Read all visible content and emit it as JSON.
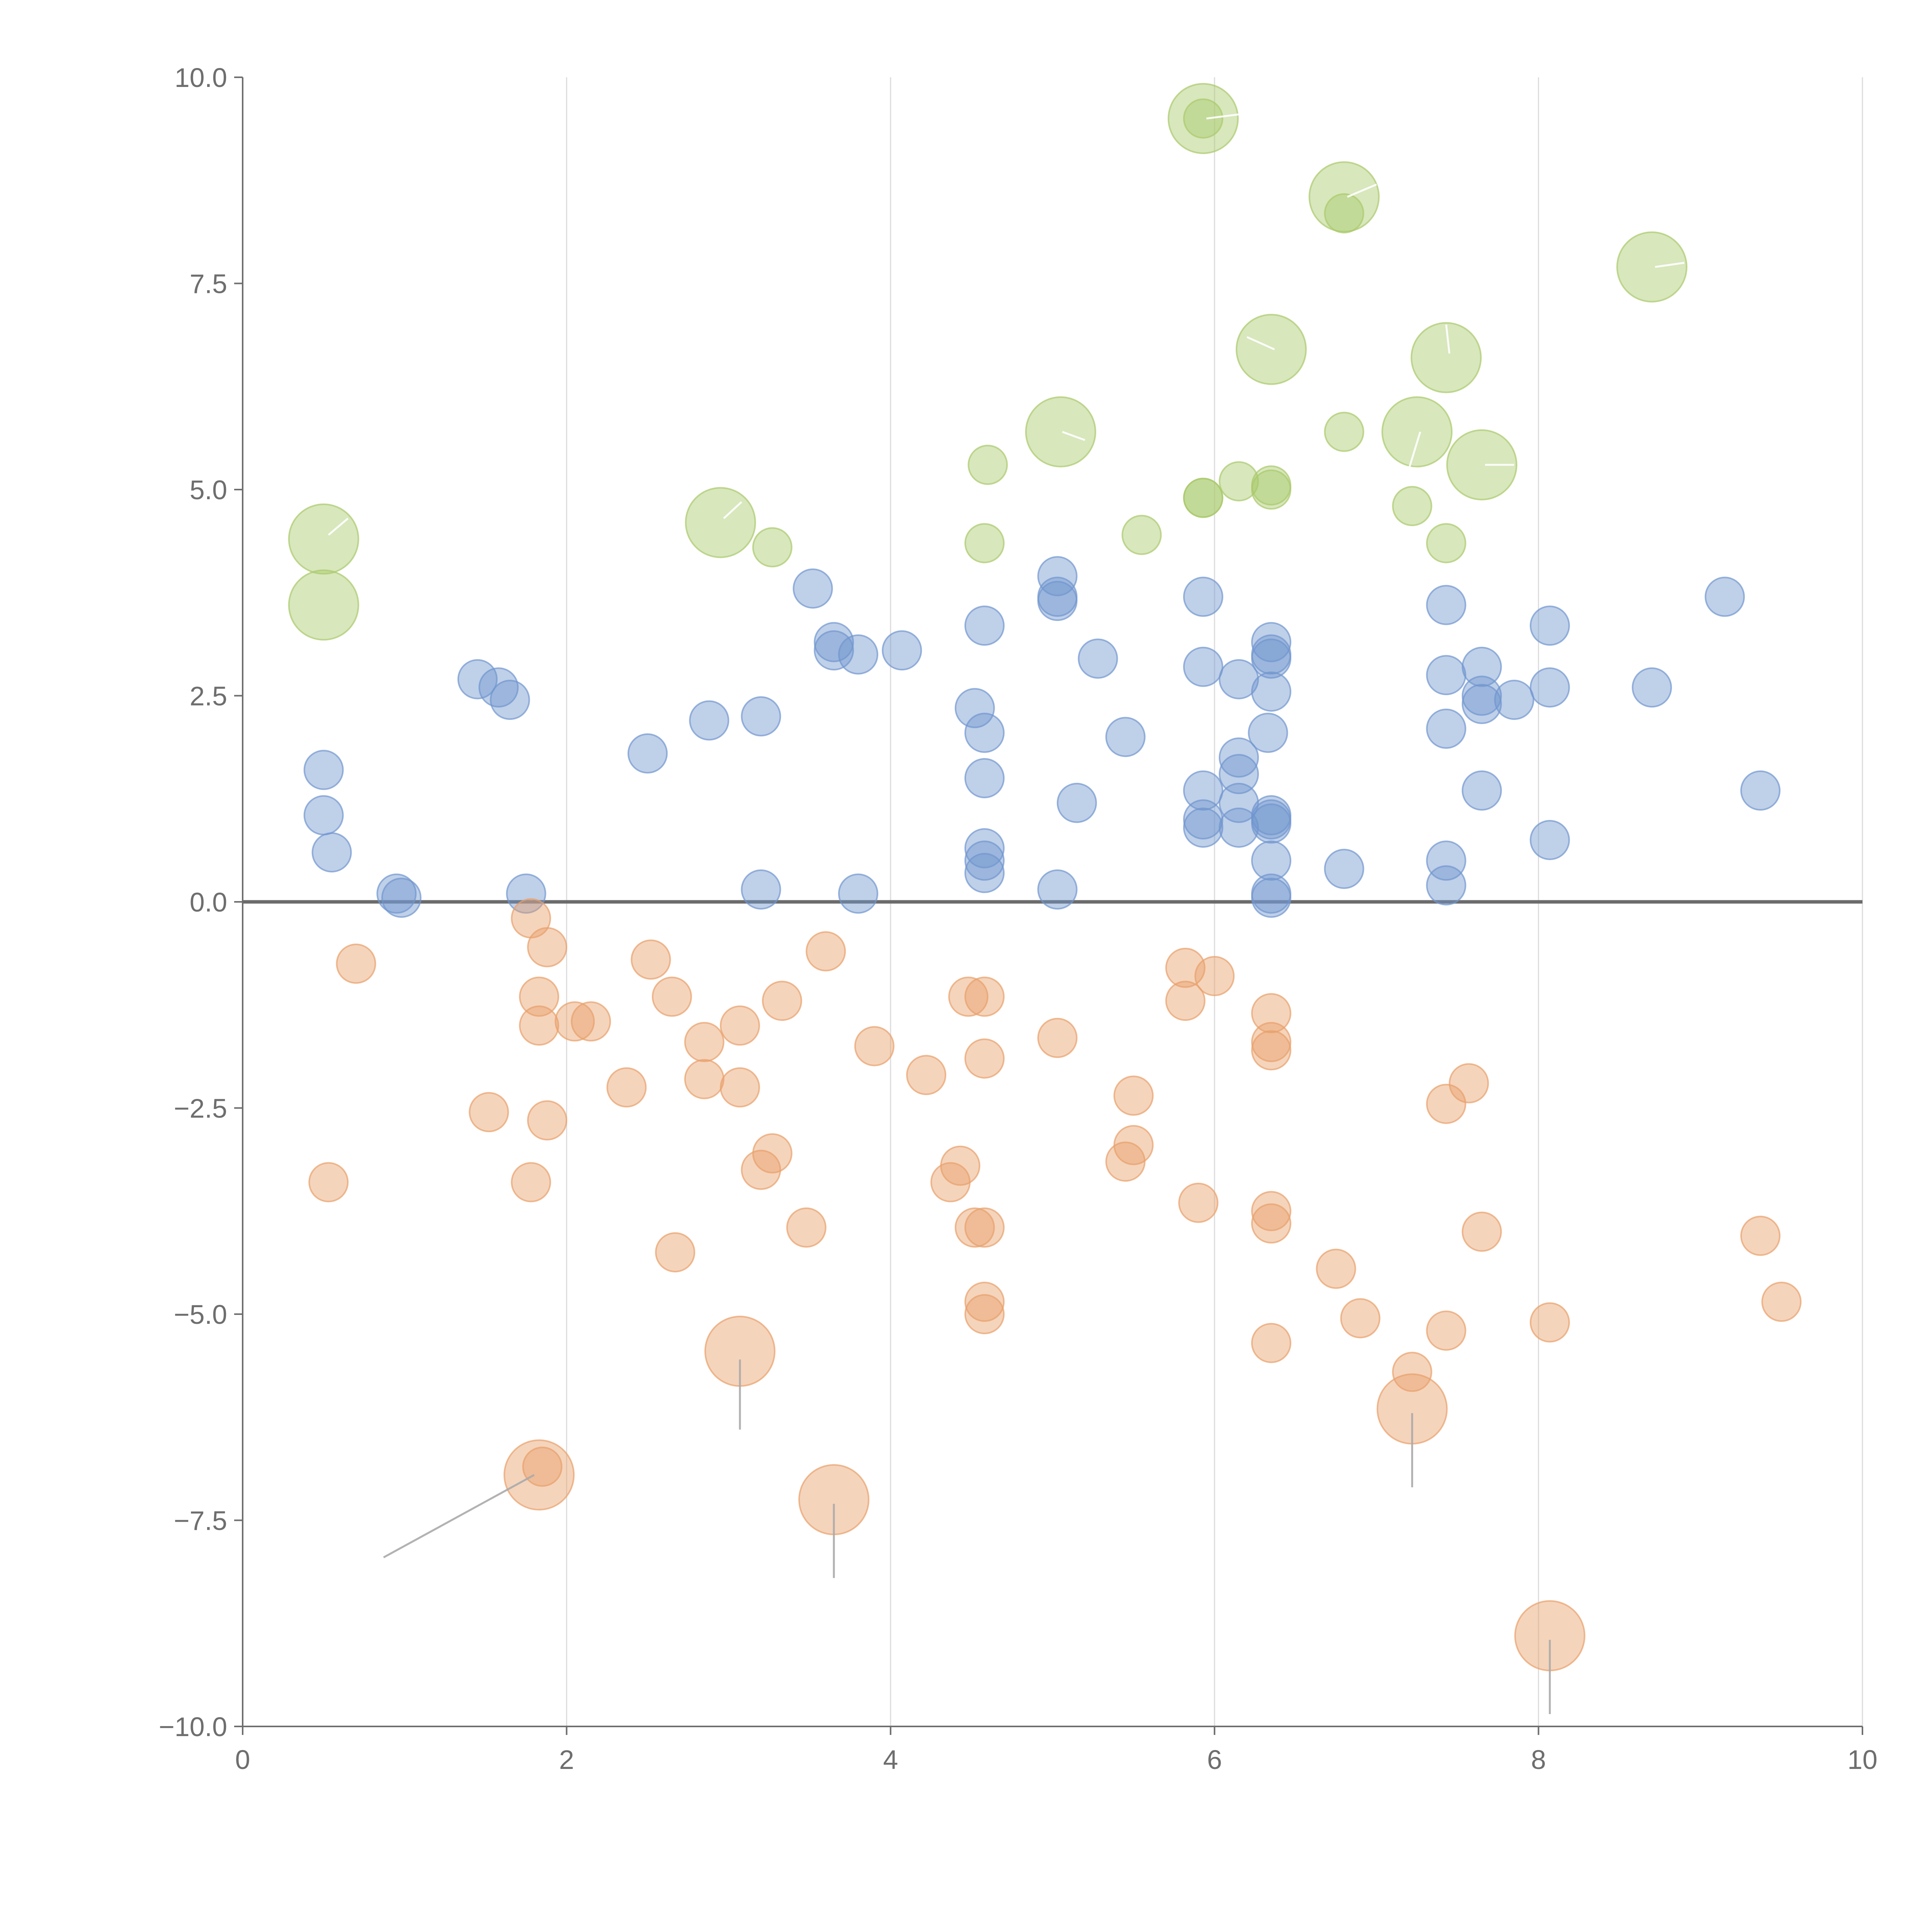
{
  "chart_data": {
    "type": "scatter",
    "title": "",
    "xlabel": "",
    "ylabel": "",
    "xlim": [
      0,
      10
    ],
    "ylim": [
      -10,
      10
    ],
    "grid": "vertical",
    "x_ticks": [
      "0",
      "2",
      "4",
      "6",
      "8",
      "10"
    ],
    "x_tick_values": [
      0,
      2,
      4,
      6,
      8,
      10
    ],
    "y_ticks": [
      "10.0",
      "7.5",
      "5.0",
      "2.5",
      "0.0",
      "−2.5",
      "−5.0",
      "−7.5",
      "−10.0"
    ],
    "y_tick_values": [
      10,
      7.5,
      5,
      2.5,
      0,
      -2.5,
      -5,
      -7.5,
      -10
    ],
    "series": [
      {
        "name": "green",
        "color": "#a9c96b",
        "points": [
          {
            "x": 0.5,
            "y": 4.4,
            "size": "large"
          },
          {
            "x": 0.5,
            "y": 3.6,
            "size": "large"
          },
          {
            "x": 2.95,
            "y": 4.6,
            "size": "large"
          },
          {
            "x": 3.27,
            "y": 4.3,
            "size": "small"
          },
          {
            "x": 4.6,
            "y": 5.3,
            "size": "small"
          },
          {
            "x": 4.58,
            "y": 4.35,
            "size": "small"
          },
          {
            "x": 5.05,
            "y": 5.7,
            "size": "large"
          },
          {
            "x": 5.55,
            "y": 4.45,
            "size": "small"
          },
          {
            "x": 5.93,
            "y": 9.5,
            "size": "large"
          },
          {
            "x": 5.93,
            "y": 9.5,
            "size": "small"
          },
          {
            "x": 5.93,
            "y": 4.9,
            "size": "small"
          },
          {
            "x": 5.93,
            "y": 4.9,
            "size": "small"
          },
          {
            "x": 6.15,
            "y": 5.1,
            "size": "small"
          },
          {
            "x": 6.35,
            "y": 6.7,
            "size": "large"
          },
          {
            "x": 6.35,
            "y": 5.05,
            "size": "small"
          },
          {
            "x": 6.35,
            "y": 5.0,
            "size": "small"
          },
          {
            "x": 6.8,
            "y": 8.55,
            "size": "large"
          },
          {
            "x": 6.8,
            "y": 8.35,
            "size": "small"
          },
          {
            "x": 6.8,
            "y": 5.7,
            "size": "small"
          },
          {
            "x": 7.25,
            "y": 5.7,
            "size": "large"
          },
          {
            "x": 7.22,
            "y": 4.8,
            "size": "small"
          },
          {
            "x": 7.43,
            "y": 6.6,
            "size": "large"
          },
          {
            "x": 7.43,
            "y": 4.35,
            "size": "small"
          },
          {
            "x": 7.65,
            "y": 5.3,
            "size": "large"
          },
          {
            "x": 8.7,
            "y": 7.7,
            "size": "large"
          }
        ]
      },
      {
        "name": "blue",
        "color": "#7196cf",
        "points": [
          {
            "x": 0.5,
            "y": 1.6,
            "size": "small"
          },
          {
            "x": 0.5,
            "y": 1.05,
            "size": "small"
          },
          {
            "x": 0.55,
            "y": 0.6,
            "size": "small"
          },
          {
            "x": 0.95,
            "y": 0.1,
            "size": "small"
          },
          {
            "x": 0.98,
            "y": 0.05,
            "size": "small"
          },
          {
            "x": 1.45,
            "y": 2.7,
            "size": "small"
          },
          {
            "x": 1.58,
            "y": 2.6,
            "size": "small"
          },
          {
            "x": 1.65,
            "y": 2.45,
            "size": "small"
          },
          {
            "x": 1.75,
            "y": 0.1,
            "size": "small"
          },
          {
            "x": 2.5,
            "y": 1.8,
            "size": "small"
          },
          {
            "x": 2.88,
            "y": 2.2,
            "size": "small"
          },
          {
            "x": 3.2,
            "y": 2.25,
            "size": "small"
          },
          {
            "x": 3.2,
            "y": 0.15,
            "size": "small"
          },
          {
            "x": 3.52,
            "y": 3.8,
            "size": "small"
          },
          {
            "x": 3.65,
            "y": 3.15,
            "size": "small"
          },
          {
            "x": 3.65,
            "y": 3.05,
            "size": "small"
          },
          {
            "x": 3.8,
            "y": 3.0,
            "size": "small"
          },
          {
            "x": 3.8,
            "y": 0.1,
            "size": "small"
          },
          {
            "x": 4.07,
            "y": 3.05,
            "size": "small"
          },
          {
            "x": 4.52,
            "y": 2.35,
            "size": "small"
          },
          {
            "x": 4.58,
            "y": 3.35,
            "size": "small"
          },
          {
            "x": 4.58,
            "y": 2.05,
            "size": "small"
          },
          {
            "x": 4.58,
            "y": 1.5,
            "size": "small"
          },
          {
            "x": 4.58,
            "y": 0.65,
            "size": "small"
          },
          {
            "x": 4.58,
            "y": 0.5,
            "size": "small"
          },
          {
            "x": 4.58,
            "y": 0.35,
            "size": "small"
          },
          {
            "x": 5.03,
            "y": 3.95,
            "size": "small"
          },
          {
            "x": 5.03,
            "y": 3.7,
            "size": "small"
          },
          {
            "x": 5.03,
            "y": 3.65,
            "size": "small"
          },
          {
            "x": 5.03,
            "y": 0.15,
            "size": "small"
          },
          {
            "x": 5.15,
            "y": 1.2,
            "size": "small"
          },
          {
            "x": 5.28,
            "y": 2.95,
            "size": "small"
          },
          {
            "x": 5.45,
            "y": 2.0,
            "size": "small"
          },
          {
            "x": 5.93,
            "y": 3.7,
            "size": "small"
          },
          {
            "x": 5.93,
            "y": 2.85,
            "size": "small"
          },
          {
            "x": 5.93,
            "y": 1.35,
            "size": "small"
          },
          {
            "x": 5.93,
            "y": 1.0,
            "size": "small"
          },
          {
            "x": 5.93,
            "y": 0.9,
            "size": "small"
          },
          {
            "x": 6.15,
            "y": 2.7,
            "size": "small"
          },
          {
            "x": 6.15,
            "y": 1.75,
            "size": "small"
          },
          {
            "x": 6.15,
            "y": 1.55,
            "size": "small"
          },
          {
            "x": 6.15,
            "y": 1.2,
            "size": "small"
          },
          {
            "x": 6.15,
            "y": 0.9,
            "size": "small"
          },
          {
            "x": 6.35,
            "y": 3.15,
            "size": "small"
          },
          {
            "x": 6.35,
            "y": 3.0,
            "size": "small"
          },
          {
            "x": 6.35,
            "y": 2.95,
            "size": "small"
          },
          {
            "x": 6.35,
            "y": 2.55,
            "size": "small"
          },
          {
            "x": 6.33,
            "y": 2.05,
            "size": "small"
          },
          {
            "x": 6.35,
            "y": 1.05,
            "size": "small"
          },
          {
            "x": 6.35,
            "y": 1.0,
            "size": "small"
          },
          {
            "x": 6.35,
            "y": 0.95,
            "size": "small"
          },
          {
            "x": 6.35,
            "y": 0.5,
            "size": "small"
          },
          {
            "x": 6.35,
            "y": 0.1,
            "size": "small"
          },
          {
            "x": 6.35,
            "y": 0.05,
            "size": "small"
          },
          {
            "x": 6.8,
            "y": 0.4,
            "size": "small"
          },
          {
            "x": 7.43,
            "y": 3.6,
            "size": "small"
          },
          {
            "x": 7.43,
            "y": 2.75,
            "size": "small"
          },
          {
            "x": 7.43,
            "y": 2.1,
            "size": "small"
          },
          {
            "x": 7.43,
            "y": 0.5,
            "size": "small"
          },
          {
            "x": 7.43,
            "y": 0.2,
            "size": "small"
          },
          {
            "x": 7.65,
            "y": 2.85,
            "size": "small"
          },
          {
            "x": 7.65,
            "y": 2.5,
            "size": "small"
          },
          {
            "x": 7.65,
            "y": 2.4,
            "size": "small"
          },
          {
            "x": 7.65,
            "y": 1.35,
            "size": "small"
          },
          {
            "x": 7.85,
            "y": 2.45,
            "size": "small"
          },
          {
            "x": 8.07,
            "y": 3.35,
            "size": "small"
          },
          {
            "x": 8.07,
            "y": 2.6,
            "size": "small"
          },
          {
            "x": 8.07,
            "y": 0.75,
            "size": "small"
          },
          {
            "x": 8.7,
            "y": 2.6,
            "size": "small"
          },
          {
            "x": 9.15,
            "y": 3.7,
            "size": "small"
          },
          {
            "x": 9.37,
            "y": 1.35,
            "size": "small"
          }
        ]
      },
      {
        "name": "orange",
        "color": "#e8a06a",
        "points": [
          {
            "x": 0.7,
            "y": -0.75,
            "size": "small"
          },
          {
            "x": 0.53,
            "y": -3.4,
            "size": "small"
          },
          {
            "x": 1.52,
            "y": -2.55,
            "size": "small"
          },
          {
            "x": 1.78,
            "y": -3.4,
            "size": "small"
          },
          {
            "x": 1.78,
            "y": -0.2,
            "size": "small"
          },
          {
            "x": 1.88,
            "y": -0.55,
            "size": "small"
          },
          {
            "x": 1.83,
            "y": -1.15,
            "size": "small"
          },
          {
            "x": 1.83,
            "y": -1.5,
            "size": "small"
          },
          {
            "x": 1.88,
            "y": -2.65,
            "size": "small"
          },
          {
            "x": 2.05,
            "y": -1.45,
            "size": "small"
          },
          {
            "x": 2.15,
            "y": -1.45,
            "size": "small"
          },
          {
            "x": 2.37,
            "y": -2.25,
            "size": "small"
          },
          {
            "x": 2.52,
            "y": -0.7,
            "size": "small"
          },
          {
            "x": 2.65,
            "y": -1.15,
            "size": "small"
          },
          {
            "x": 2.67,
            "y": -4.25,
            "size": "small"
          },
          {
            "x": 2.85,
            "y": -1.7,
            "size": "small"
          },
          {
            "x": 2.85,
            "y": -2.15,
            "size": "small"
          },
          {
            "x": 3.07,
            "y": -1.5,
            "size": "small"
          },
          {
            "x": 3.07,
            "y": -2.25,
            "size": "small"
          },
          {
            "x": 3.2,
            "y": -3.25,
            "size": "small"
          },
          {
            "x": 3.27,
            "y": -3.05,
            "size": "small"
          },
          {
            "x": 3.33,
            "y": -1.2,
            "size": "small"
          },
          {
            "x": 3.48,
            "y": -3.95,
            "size": "small"
          },
          {
            "x": 3.6,
            "y": -0.6,
            "size": "small"
          },
          {
            "x": 3.9,
            "y": -1.75,
            "size": "small"
          },
          {
            "x": 4.22,
            "y": -2.1,
            "size": "small"
          },
          {
            "x": 4.37,
            "y": -3.4,
            "size": "small"
          },
          {
            "x": 4.43,
            "y": -3.2,
            "size": "small"
          },
          {
            "x": 4.48,
            "y": -1.15,
            "size": "small"
          },
          {
            "x": 4.58,
            "y": -1.15,
            "size": "small"
          },
          {
            "x": 4.58,
            "y": -1.9,
            "size": "small"
          },
          {
            "x": 4.52,
            "y": -3.95,
            "size": "small"
          },
          {
            "x": 4.58,
            "y": -3.95,
            "size": "small"
          },
          {
            "x": 4.58,
            "y": -4.85,
            "size": "small"
          },
          {
            "x": 4.58,
            "y": -5.0,
            "size": "small"
          },
          {
            "x": 5.03,
            "y": -1.65,
            "size": "small"
          },
          {
            "x": 5.45,
            "y": -3.15,
            "size": "small"
          },
          {
            "x": 5.5,
            "y": -2.35,
            "size": "small"
          },
          {
            "x": 5.5,
            "y": -2.95,
            "size": "small"
          },
          {
            "x": 5.82,
            "y": -0.8,
            "size": "small"
          },
          {
            "x": 5.82,
            "y": -1.2,
            "size": "small"
          },
          {
            "x": 6.0,
            "y": -0.9,
            "size": "small"
          },
          {
            "x": 5.9,
            "y": -3.65,
            "size": "small"
          },
          {
            "x": 6.35,
            "y": -1.35,
            "size": "small"
          },
          {
            "x": 6.35,
            "y": -1.7,
            "size": "small"
          },
          {
            "x": 6.35,
            "y": -1.8,
            "size": "small"
          },
          {
            "x": 6.35,
            "y": -3.75,
            "size": "small"
          },
          {
            "x": 6.35,
            "y": -3.9,
            "size": "small"
          },
          {
            "x": 6.35,
            "y": -5.35,
            "size": "small"
          },
          {
            "x": 6.75,
            "y": -4.45,
            "size": "small"
          },
          {
            "x": 6.9,
            "y": -5.05,
            "size": "small"
          },
          {
            "x": 7.22,
            "y": -5.7,
            "size": "small"
          },
          {
            "x": 7.43,
            "y": -2.45,
            "size": "small"
          },
          {
            "x": 7.57,
            "y": -2.2,
            "size": "small"
          },
          {
            "x": 7.43,
            "y": -5.2,
            "size": "small"
          },
          {
            "x": 7.65,
            "y": -4.0,
            "size": "small"
          },
          {
            "x": 8.07,
            "y": -5.1,
            "size": "small"
          },
          {
            "x": 9.37,
            "y": -4.05,
            "size": "small"
          },
          {
            "x": 9.5,
            "y": -4.85,
            "size": "small"
          },
          {
            "x": 1.83,
            "y": -6.95,
            "size": "large"
          },
          {
            "x": 1.85,
            "y": -6.85,
            "size": "small"
          },
          {
            "x": 3.07,
            "y": -5.45,
            "size": "large"
          },
          {
            "x": 3.65,
            "y": -7.25,
            "size": "large"
          },
          {
            "x": 7.22,
            "y": -6.15,
            "size": "large"
          },
          {
            "x": 8.07,
            "y": -8.9,
            "size": "large"
          }
        ]
      }
    ],
    "annotation_lines": [
      {
        "x1": 0.87,
        "y1": -7.95,
        "x2": 1.8,
        "y2": -6.95,
        "color": "#aaaaaa"
      },
      {
        "x1": 3.07,
        "y1": -5.55,
        "x2": 3.07,
        "y2": -6.4,
        "color": "#aaaaaa"
      },
      {
        "x1": 3.65,
        "y1": -7.3,
        "x2": 3.65,
        "y2": -8.2,
        "color": "#aaaaaa"
      },
      {
        "x1": 7.22,
        "y1": -6.2,
        "x2": 7.22,
        "y2": -7.1,
        "color": "#aaaaaa"
      },
      {
        "x1": 8.07,
        "y1": -8.95,
        "x2": 8.07,
        "y2": -9.85,
        "color": "#aaaaaa"
      },
      {
        "x1": 0.53,
        "y1": 4.45,
        "x2": 0.65,
        "y2": 4.65,
        "color": "#ffffff"
      },
      {
        "x1": 2.97,
        "y1": 4.65,
        "x2": 3.08,
        "y2": 4.85,
        "color": "#ffffff"
      },
      {
        "x1": 5.06,
        "y1": 5.7,
        "x2": 5.2,
        "y2": 5.6,
        "color": "#ffffff"
      },
      {
        "x1": 5.95,
        "y1": 9.5,
        "x2": 6.15,
        "y2": 9.55,
        "color": "#ffffff"
      },
      {
        "x1": 6.37,
        "y1": 6.7,
        "x2": 6.2,
        "y2": 6.85,
        "color": "#ffffff"
      },
      {
        "x1": 6.82,
        "y1": 8.55,
        "x2": 7.0,
        "y2": 8.7,
        "color": "#ffffff"
      },
      {
        "x1": 7.27,
        "y1": 5.7,
        "x2": 7.2,
        "y2": 5.25,
        "color": "#ffffff"
      },
      {
        "x1": 7.45,
        "y1": 6.65,
        "x2": 7.43,
        "y2": 7.0,
        "color": "#ffffff"
      },
      {
        "x1": 7.67,
        "y1": 5.3,
        "x2": 7.85,
        "y2": 5.3,
        "color": "#ffffff"
      },
      {
        "x1": 8.72,
        "y1": 7.7,
        "x2": 8.9,
        "y2": 7.75,
        "color": "#ffffff"
      }
    ]
  }
}
